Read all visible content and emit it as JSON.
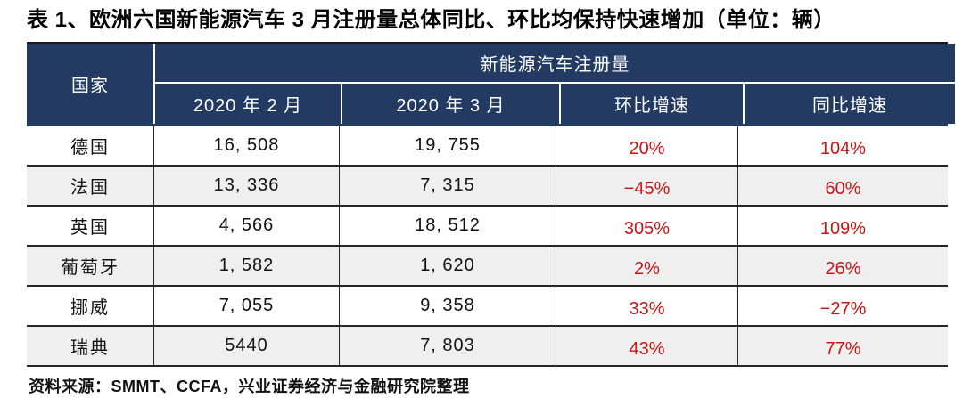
{
  "page": {
    "title": "表 1、欧洲六国新能源汽车 3 月注册量总体同比、环比均保持快速增加（单位：辆）",
    "source_note": "资料来源：SMMT、CCFA，兴业证券经济与金融研究院整理"
  },
  "colors": {
    "header_bg": "#233a63",
    "header_text": "#ffffff",
    "growth_red": "#c81414",
    "row_alt_bg": "#efefef",
    "grid_line": "#262626",
    "title_text": "#000000"
  },
  "table": {
    "header": {
      "country": "国家",
      "group": "新能源汽车注册量",
      "feb": "2020 年 2 月",
      "mar": "2020 年 3 月",
      "mom": "环比增速",
      "yoy": "同比增速"
    },
    "rows": [
      {
        "country": "德国",
        "feb": "16, 508",
        "mar": "19, 755",
        "mom": "20%",
        "yoy": "104%"
      },
      {
        "country": "法国",
        "feb": "13, 336",
        "mar": "7, 315",
        "mom": "−45%",
        "yoy": "60%"
      },
      {
        "country": "英国",
        "feb": "4, 566",
        "mar": "18, 512",
        "mom": "305%",
        "yoy": "109%"
      },
      {
        "country": "葡萄牙",
        "feb": "1, 582",
        "mar": "1, 620",
        "mom": "2%",
        "yoy": "26%"
      },
      {
        "country": "挪威",
        "feb": "7, 055",
        "mar": "9, 358",
        "mom": "33%",
        "yoy": "−27%"
      },
      {
        "country": "瑞典",
        "feb": "5440",
        "mar": "7, 803",
        "mom": "43%",
        "yoy": "77%"
      }
    ]
  }
}
